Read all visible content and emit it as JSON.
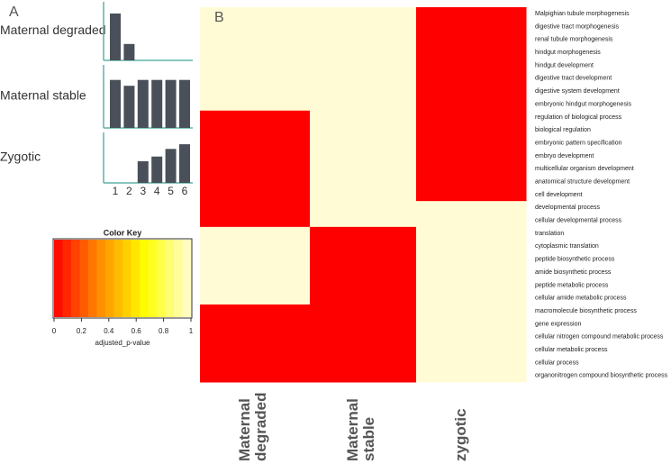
{
  "chart_data": [
    {
      "type": "bar",
      "panel_label": "A",
      "color": "#4a5059",
      "axis_color": "#5fb3a8",
      "categories": [
        1,
        2,
        3,
        4,
        5,
        6
      ],
      "series": [
        {
          "name": "Maternal degraded",
          "values": [
            0.8,
            0.28,
            0,
            0,
            0,
            0
          ]
        },
        {
          "name": "Maternal stable",
          "values": [
            0.82,
            0.72,
            0.82,
            0.82,
            0.82,
            0.82
          ]
        },
        {
          "name": "Zygotic",
          "values": [
            0,
            0,
            0.37,
            0.45,
            0.58,
            0.66
          ]
        }
      ]
    },
    {
      "type": "heatmap",
      "panel_label": "B",
      "columns": [
        "Maternal degraded",
        "Maternal stable",
        "zygotic"
      ],
      "rows": [
        "Malpighian tubule morphogenesis",
        "digestive tract morphogenesis",
        "renal tubule morphogenesis",
        "hindgut morphogenesis",
        "hindgut development",
        "digestive tract development",
        "digestive system development",
        "embryonic hindgut morphogenesis",
        "regulation of biological process",
        "biological regulation",
        "embryonic pattern specification",
        "embryo development",
        "multicellular organism development",
        "anatomical structure development",
        "cell development",
        "developmental process",
        "cellular developmental process",
        "translation",
        "cytoplasmic translation",
        "peptide biosynthetic process",
        "amide biosynthetic process",
        "peptide metabolic process",
        "cellular amide metabolic process",
        "macromolecule biosynthetic process",
        "gene expression",
        "cellular nitrogen compound metabolic process",
        "cellular metabolic process",
        "cellular process",
        "organonitrogen compound biosynthetic process"
      ],
      "values": [
        [
          1,
          1,
          0
        ],
        [
          1,
          1,
          0
        ],
        [
          1,
          1,
          0
        ],
        [
          1,
          1,
          0
        ],
        [
          1,
          1,
          0
        ],
        [
          1,
          1,
          0
        ],
        [
          1,
          1,
          0
        ],
        [
          1,
          1,
          0
        ],
        [
          0,
          1,
          0
        ],
        [
          0,
          1,
          0
        ],
        [
          0,
          1,
          0
        ],
        [
          0,
          1,
          0
        ],
        [
          0,
          1,
          0
        ],
        [
          0,
          1,
          0
        ],
        [
          0,
          1,
          0
        ],
        [
          0,
          1,
          1
        ],
        [
          0,
          1,
          1
        ],
        [
          1,
          0,
          1
        ],
        [
          1,
          0,
          1
        ],
        [
          1,
          0,
          1
        ],
        [
          1,
          0,
          1
        ],
        [
          1,
          0,
          1
        ],
        [
          1,
          0,
          1
        ],
        [
          0,
          0,
          1
        ],
        [
          0,
          0,
          1
        ],
        [
          0,
          0,
          1
        ],
        [
          0,
          0,
          1
        ],
        [
          0,
          0,
          1
        ],
        [
          0,
          0,
          1
        ]
      ],
      "colors": [
        "#ff0000",
        "#ff8c00",
        "#ffff00",
        "#fffbd5"
      ],
      "color_key": {
        "title": "Color Key",
        "label": "adjusted_p-value",
        "lim": [
          0,
          1
        ],
        "ticks": [
          0,
          0.2,
          0.4,
          0.6,
          0.8,
          1
        ]
      }
    }
  ]
}
